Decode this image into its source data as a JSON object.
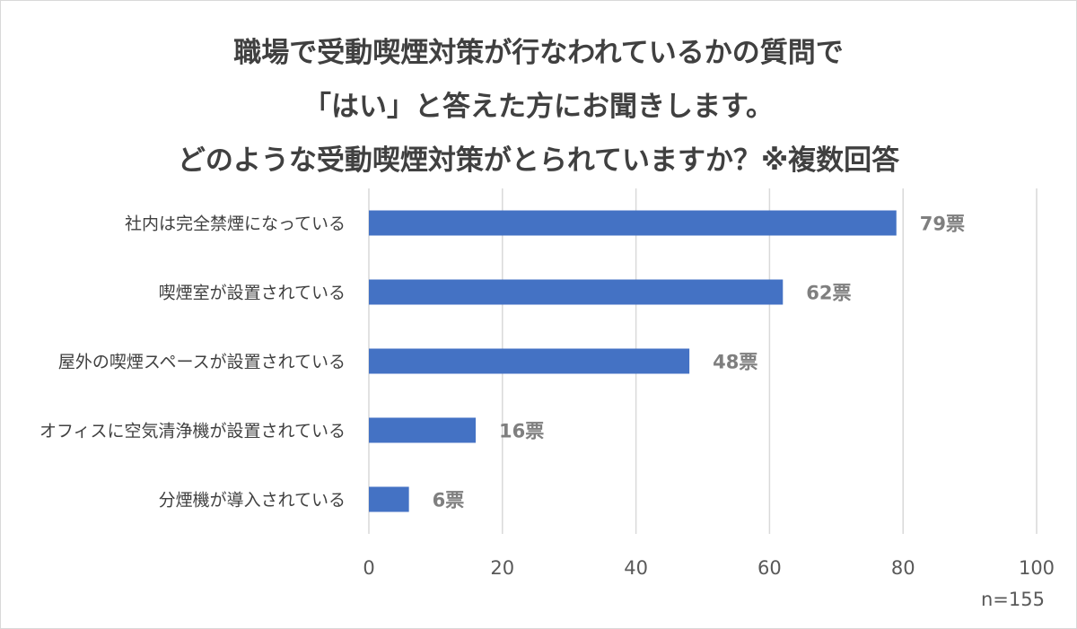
{
  "chart_data": {
    "type": "bar",
    "orientation": "horizontal",
    "title_lines": [
      "職場で受動喫煙対策が行なわれているかの質問で",
      "「はい」と答えた方にお聞きします。",
      "どのような受動喫煙対策がとられていますか？※複数回答"
    ],
    "categories": [
      "社内は完全禁煙になっている",
      "喫煙室が設置されている",
      "屋外の喫煙スペースが設置されている",
      "オフィスに空気清浄機が設置されている",
      "分煙機が導入されている"
    ],
    "values": [
      79,
      62,
      48,
      16,
      6
    ],
    "data_labels": [
      "79票",
      "62票",
      "48票",
      "16票",
      "6票"
    ],
    "xlim": [
      0,
      100
    ],
    "x_ticks": [
      "0",
      "20",
      "40",
      "60",
      "80",
      "100"
    ],
    "grid": true,
    "bar_color": "#4472c4",
    "grid_color": "#d9d9d9",
    "note": "n=155"
  }
}
